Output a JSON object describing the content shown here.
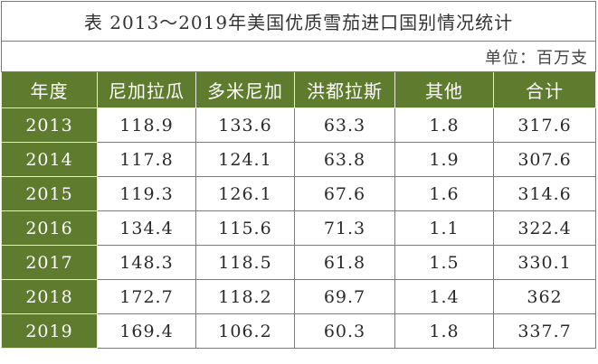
{
  "title": "表 2013～2019年美国优质雪茄进口国别情况统计",
  "unit": "单位：百万支",
  "headers": [
    "年度",
    "尼加拉瓜",
    "多米尼加",
    "洪都拉斯",
    "其他",
    "合计"
  ],
  "rows": [
    {
      "year": "2013",
      "nicaragua": "118.9",
      "dominican": "133.6",
      "honduras": "63.3",
      "other": "1.8",
      "total": "317.6"
    },
    {
      "year": "2014",
      "nicaragua": "117.8",
      "dominican": "124.1",
      "honduras": "63.8",
      "other": "1.9",
      "total": "307.6"
    },
    {
      "year": "2015",
      "nicaragua": "119.3",
      "dominican": "126.1",
      "honduras": "67.6",
      "other": "1.6",
      "total": "314.6"
    },
    {
      "year": "2016",
      "nicaragua": "134.4",
      "dominican": "115.6",
      "honduras": "71.3",
      "other": "1.1",
      "total": "322.4"
    },
    {
      "year": "2017",
      "nicaragua": "148.3",
      "dominican": "118.5",
      "honduras": "61.8",
      "other": "1.5",
      "total": "330.1"
    },
    {
      "year": "2018",
      "nicaragua": "172.7",
      "dominican": "118.2",
      "honduras": "69.7",
      "other": "1.4",
      "total": "362"
    },
    {
      "year": "2019",
      "nicaragua": "169.4",
      "dominican": "106.2",
      "honduras": "60.3",
      "other": "1.8",
      "total": "337.7"
    }
  ],
  "colors": {
    "header_bg": "#5e7b2e",
    "header_text": "#ffffff",
    "border": "#7a7a7a"
  }
}
